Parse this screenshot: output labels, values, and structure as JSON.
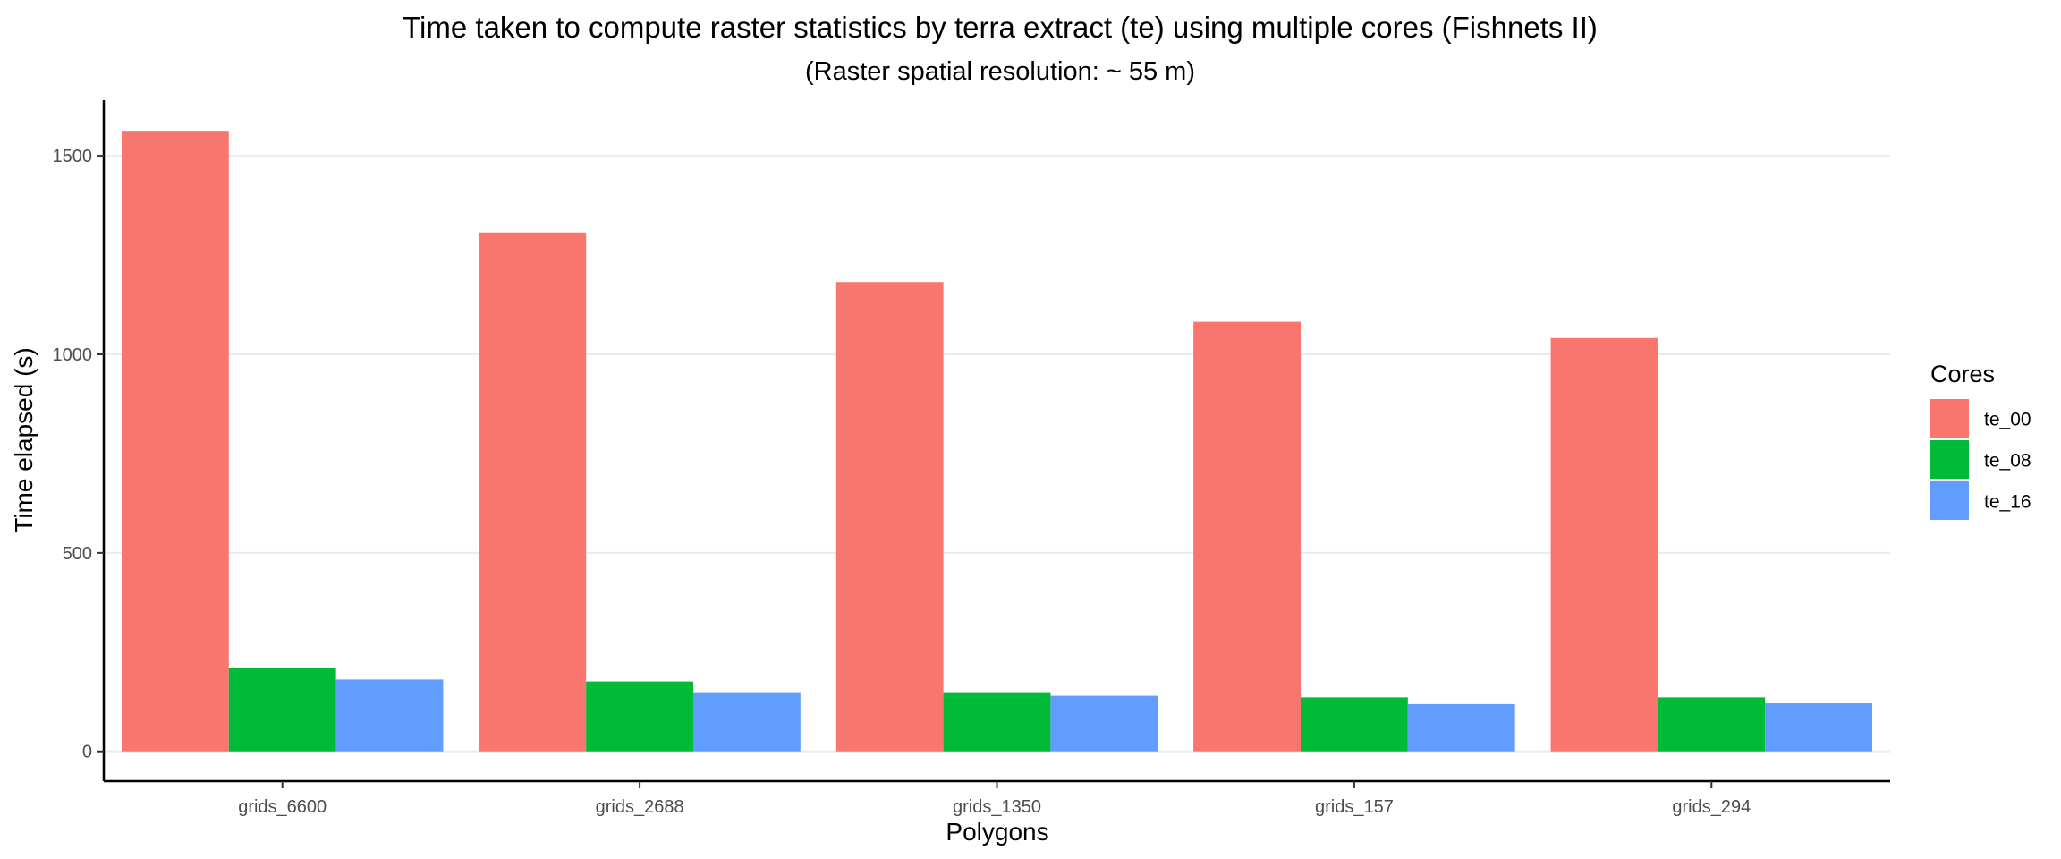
{
  "chart_data": {
    "type": "bar",
    "title": "Time taken to compute raster statistics by terra extract (te) using multiple cores (Fishnets II)",
    "subtitle": "(Raster spatial resolution: ~ 55 m)",
    "xlabel": "Polygons",
    "ylabel": "Time elapsed (s)",
    "categories": [
      "grids_6600",
      "grids_2688",
      "grids_1350",
      "grids_157",
      "grids_294"
    ],
    "series": [
      {
        "name": "te_00",
        "color": "#F8766D",
        "values": [
          1563,
          1307,
          1182,
          1082,
          1041
        ]
      },
      {
        "name": "te_08",
        "color": "#00BA38",
        "values": [
          209,
          176,
          149,
          136,
          136
        ]
      },
      {
        "name": "te_16",
        "color": "#619CFF",
        "values": [
          181,
          149,
          140,
          119,
          121
        ]
      }
    ],
    "ylim": [
      -75,
      1640
    ],
    "yticks": [
      0,
      500,
      1000,
      1500
    ],
    "grid": "horizontal",
    "legend": {
      "title": "Cores",
      "position": "right"
    }
  }
}
